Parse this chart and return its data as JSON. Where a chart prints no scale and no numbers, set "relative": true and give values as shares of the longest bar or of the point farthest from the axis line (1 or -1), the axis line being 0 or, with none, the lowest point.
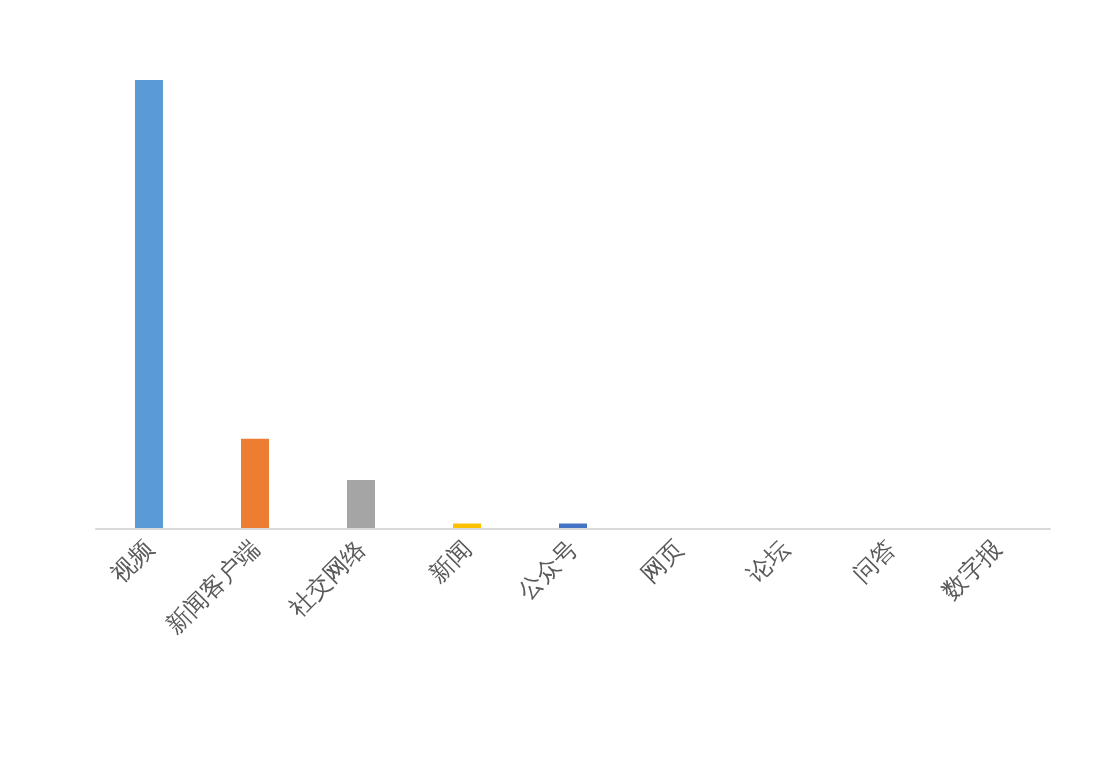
{
  "chart_data": {
    "type": "bar",
    "relative": true,
    "categories": [
      "视频",
      "新闻客户端",
      "社交网络",
      "新闻",
      "公众号",
      "网页",
      "论坛",
      "问答",
      "数字报"
    ],
    "values": [
      1,
      0.199,
      0.107,
      0.01,
      0.01,
      0,
      0,
      0,
      0
    ],
    "colors": [
      "#5b9bd5",
      "#ed7d31",
      "#a5a5a5",
      "#ffc000",
      "#4472c4",
      "#70ad47",
      "#264478",
      "#9e480e",
      "#636363"
    ]
  }
}
